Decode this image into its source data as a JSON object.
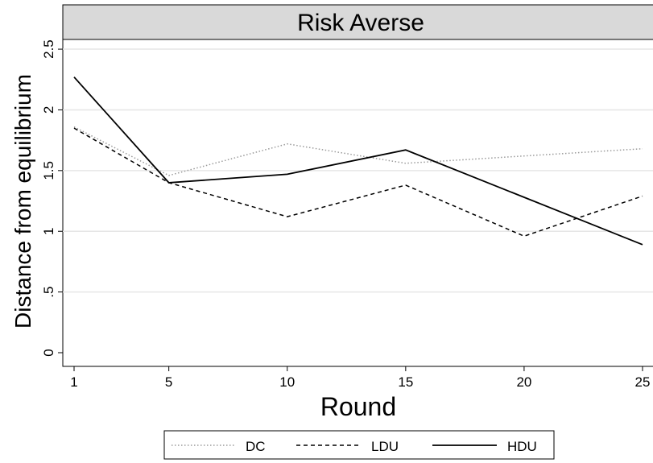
{
  "chart_data": {
    "type": "line",
    "title": "Risk Averse",
    "xlabel": "Round",
    "ylabel": "Distance from equilibrium",
    "x": [
      1,
      5,
      10,
      15,
      20,
      25
    ],
    "xticks": [
      "1",
      "5",
      "10",
      "15",
      "20",
      "25"
    ],
    "yticks": [
      {
        "value": 0,
        "label": "0"
      },
      {
        "value": 0.5,
        "label": ".5"
      },
      {
        "value": 1,
        "label": "1"
      },
      {
        "value": 1.5,
        "label": "1.5"
      },
      {
        "value": 2,
        "label": "2"
      },
      {
        "value": 2.5,
        "label": "2.5"
      }
    ],
    "xlim": [
      1,
      25
    ],
    "ylim": [
      0,
      2.58
    ],
    "grid": true,
    "legend_position": "bottom",
    "series": [
      {
        "name": "DC",
        "style": "dotted",
        "color": "#9a9a9a",
        "values": [
          1.86,
          1.46,
          1.72,
          1.56,
          1.62,
          1.68
        ]
      },
      {
        "name": "LDU",
        "style": "dashed",
        "color": "#000000",
        "values": [
          1.85,
          1.4,
          1.12,
          1.38,
          0.96,
          1.29
        ]
      },
      {
        "name": "HDU",
        "style": "solid",
        "color": "#000000",
        "values": [
          2.27,
          1.4,
          1.47,
          1.67,
          1.28,
          0.89
        ]
      }
    ],
    "colors": {
      "title_band": "#d9d9d9",
      "gridline": "#e6e6e6",
      "axis": "#000000"
    }
  }
}
